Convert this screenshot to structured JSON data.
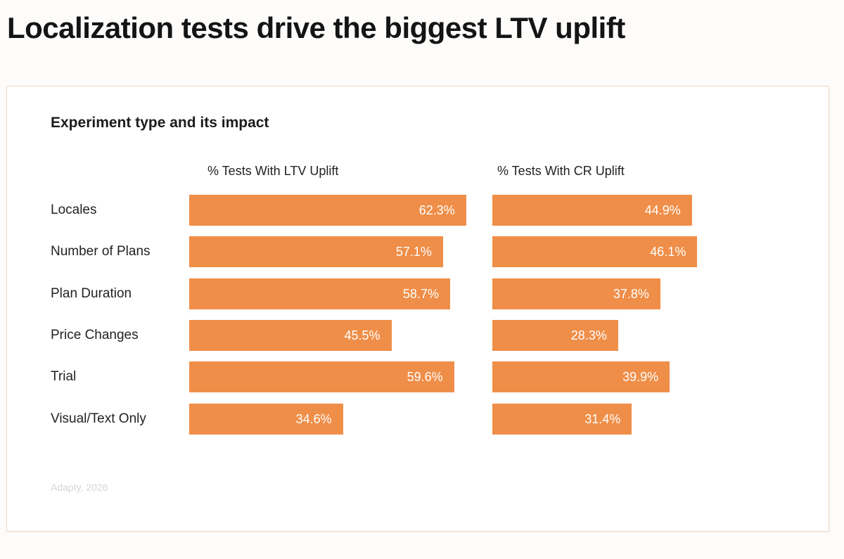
{
  "headline": "Localization tests drive the biggest LTV uplift",
  "chart_data": {
    "type": "bar",
    "orientation": "horizontal",
    "title": "Experiment type and its impact",
    "categories": [
      "Locales",
      "Number of Plans",
      "Plan Duration",
      "Price Changes",
      "Trial",
      "Visual/Text Only"
    ],
    "series": [
      {
        "name": "% Tests With LTV Uplift",
        "values": [
          62.3,
          57.1,
          58.7,
          45.5,
          59.6,
          34.6
        ],
        "labels": [
          "62.3%",
          "57.1%",
          "58.7%",
          "45.5%",
          "59.6%",
          "34.6%"
        ]
      },
      {
        "name": "% Tests With CR Uplift",
        "values": [
          44.9,
          46.1,
          37.8,
          28.3,
          39.9,
          31.4
        ],
        "labels": [
          "44.9%",
          "46.1%",
          "37.8%",
          "28.3%",
          "39.9%",
          "31.4%"
        ]
      }
    ],
    "bar_color": "#ef8e48",
    "grid": false,
    "legend": "column headers",
    "source": "Adapty, 2026"
  }
}
